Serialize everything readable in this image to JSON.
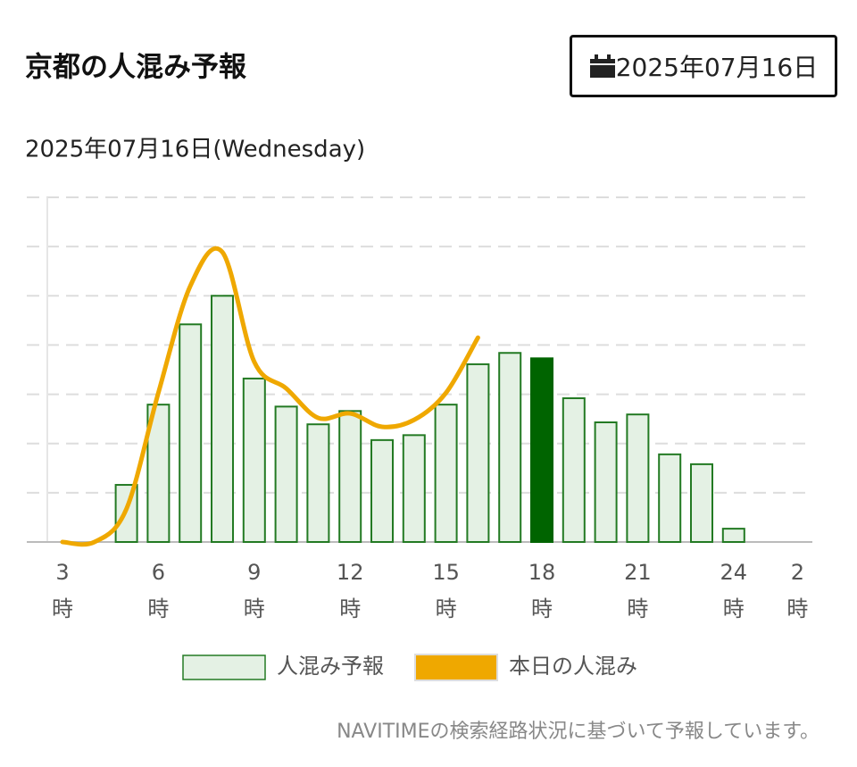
{
  "header": {
    "title": "京都の人混み予報",
    "date_button": "2025年07月16日"
  },
  "chart_data": {
    "type": "bar",
    "subtitle": "2025年07月16日(Wednesday)",
    "categories": [
      "3時",
      null,
      null,
      "6時",
      null,
      null,
      "9時",
      null,
      null,
      "12時",
      null,
      null,
      "15時",
      null,
      null,
      "18時",
      null,
      null,
      "21時",
      null,
      null,
      "24時",
      null,
      "2時"
    ],
    "series": [
      {
        "name": "人混み予報",
        "type": "bar",
        "color": "#e4f1e4",
        "edge_color": "#237a23",
        "highlight_color": "#006400",
        "highlight_index": 15,
        "values": [
          null,
          null,
          1.16,
          2.79,
          4.42,
          5.0,
          3.32,
          2.75,
          2.39,
          2.66,
          2.07,
          2.17,
          2.79,
          3.61,
          3.84,
          3.73,
          2.92,
          2.43,
          2.59,
          1.78,
          1.58,
          0.27,
          null,
          null
        ]
      },
      {
        "name": "本日の人混み",
        "type": "line",
        "color": "#efa800",
        "values": [
          0,
          0,
          0.67,
          3.03,
          5.2,
          5.89,
          3.66,
          3.12,
          2.52,
          2.61,
          2.34,
          2.48,
          3.03,
          4.15,
          null,
          null,
          null,
          null,
          null,
          null,
          null,
          null,
          null,
          null
        ]
      }
    ],
    "ylim": [
      0,
      7
    ],
    "yticks": [
      1,
      2,
      3,
      4,
      5,
      6,
      7
    ],
    "grid": true
  },
  "footnote": "NAVITIMEの検索経路状況に基づいて予報しています。"
}
